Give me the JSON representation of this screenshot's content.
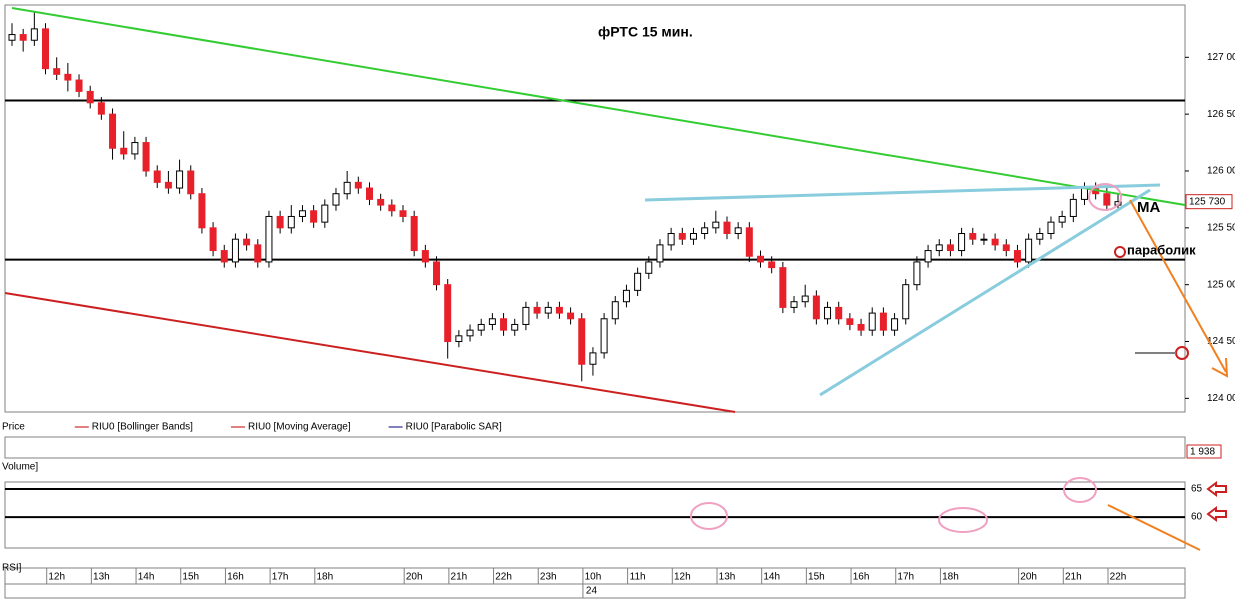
{
  "chart_data": {
    "type": "candlestick",
    "title": "фРТС   15 мин.",
    "categories": [
      null,
      null,
      null,
      null,
      "12h",
      null,
      null,
      null,
      "13h",
      null,
      null,
      null,
      "14h",
      null,
      null,
      null,
      "15h",
      null,
      null,
      null,
      "16h",
      null,
      null,
      null,
      "17h",
      null,
      null,
      null,
      "18h",
      null,
      null,
      null,
      null,
      null,
      null,
      null,
      "20h",
      null,
      null,
      null,
      "21h",
      null,
      null,
      null,
      "22h",
      null,
      null,
      null,
      "23h",
      null,
      null,
      null,
      "10h",
      null,
      null,
      null,
      "11h",
      null,
      null,
      null,
      "12h",
      null,
      null,
      null,
      "13h",
      null,
      null,
      null,
      "14h",
      null,
      null,
      null,
      "15h",
      null,
      null,
      null,
      "16h",
      null,
      null,
      null,
      "17h",
      null,
      null,
      null,
      "18h",
      null,
      null,
      null,
      null,
      null,
      null,
      "20h",
      null,
      null,
      null,
      "21h",
      null,
      null,
      null,
      "22h"
    ],
    "date_label": "24",
    "ohlc": [
      [
        127150,
        127300,
        127100,
        127200
      ],
      [
        127200,
        127250,
        127050,
        127150
      ],
      [
        127150,
        127400,
        127100,
        127250
      ],
      [
        127250,
        127300,
        126850,
        126900
      ],
      [
        126900,
        127000,
        126800,
        126850
      ],
      [
        126850,
        126950,
        126700,
        126800
      ],
      [
        126800,
        126850,
        126650,
        126700
      ],
      [
        126700,
        126750,
        126550,
        126600
      ],
      [
        126600,
        126650,
        126450,
        126500
      ],
      [
        126500,
        126550,
        126100,
        126200
      ],
      [
        126200,
        126350,
        126100,
        126150
      ],
      [
        126150,
        126300,
        126100,
        126250
      ],
      [
        126250,
        126300,
        125950,
        126000
      ],
      [
        126000,
        126050,
        125850,
        125900
      ],
      [
        125900,
        126000,
        125800,
        125850
      ],
      [
        125850,
        126100,
        125800,
        126000
      ],
      [
        126000,
        126050,
        125750,
        125800
      ],
      [
        125800,
        125850,
        125450,
        125500
      ],
      [
        125500,
        125550,
        125250,
        125300
      ],
      [
        125300,
        125350,
        125150,
        125200
      ],
      [
        125200,
        125450,
        125150,
        125400
      ],
      [
        125400,
        125450,
        125300,
        125350
      ],
      [
        125350,
        125400,
        125150,
        125200
      ],
      [
        125200,
        125650,
        125150,
        125600
      ],
      [
        125600,
        125650,
        125450,
        125500
      ],
      [
        125500,
        125700,
        125450,
        125600
      ],
      [
        125600,
        125700,
        125550,
        125650
      ],
      [
        125650,
        125700,
        125500,
        125550
      ],
      [
        125550,
        125750,
        125500,
        125700
      ],
      [
        125700,
        125850,
        125650,
        125800
      ],
      [
        125800,
        126000,
        125750,
        125900
      ],
      [
        125900,
        125950,
        125800,
        125850
      ],
      [
        125850,
        125900,
        125700,
        125750
      ],
      [
        125750,
        125800,
        125650,
        125700
      ],
      [
        125700,
        125750,
        125600,
        125650
      ],
      [
        125650,
        125700,
        125550,
        125600
      ],
      [
        125600,
        125650,
        125250,
        125300
      ],
      [
        125300,
        125350,
        125150,
        125200
      ],
      [
        125200,
        125250,
        124950,
        125000
      ],
      [
        125000,
        125050,
        124350,
        124500
      ],
      [
        124500,
        124600,
        124450,
        124550
      ],
      [
        124550,
        124650,
        124500,
        124600
      ],
      [
        124600,
        124700,
        124550,
        124650
      ],
      [
        124650,
        124750,
        124600,
        124700
      ],
      [
        124700,
        124750,
        124550,
        124600
      ],
      [
        124600,
        124700,
        124550,
        124650
      ],
      [
        124650,
        124850,
        124600,
        124800
      ],
      [
        124800,
        124850,
        124700,
        124750
      ],
      [
        124750,
        124850,
        124700,
        124800
      ],
      [
        124800,
        124850,
        124700,
        124750
      ],
      [
        124750,
        124800,
        124650,
        124700
      ],
      [
        124700,
        124750,
        124150,
        124300
      ],
      [
        124300,
        124450,
        124200,
        124400
      ],
      [
        124400,
        124750,
        124350,
        124700
      ],
      [
        124700,
        124900,
        124650,
        124850
      ],
      [
        124850,
        125000,
        124800,
        124950
      ],
      [
        124950,
        125150,
        124900,
        125100
      ],
      [
        125100,
        125250,
        125050,
        125200
      ],
      [
        125200,
        125400,
        125150,
        125350
      ],
      [
        125350,
        125500,
        125300,
        125450
      ],
      [
        125450,
        125500,
        125350,
        125400
      ],
      [
        125400,
        125500,
        125350,
        125450
      ],
      [
        125450,
        125550,
        125400,
        125500
      ],
      [
        125500,
        125650,
        125450,
        125550
      ],
      [
        125550,
        125600,
        125400,
        125450
      ],
      [
        125450,
        125550,
        125400,
        125500
      ],
      [
        125500,
        125550,
        125200,
        125250
      ],
      [
        125250,
        125300,
        125150,
        125200
      ],
      [
        125200,
        125250,
        125100,
        125150
      ],
      [
        125150,
        125200,
        124750,
        124800
      ],
      [
        124800,
        124900,
        124750,
        124850
      ],
      [
        124850,
        125000,
        124800,
        124900
      ],
      [
        124900,
        124950,
        124650,
        124700
      ],
      [
        124700,
        124850,
        124650,
        124800
      ],
      [
        124800,
        124850,
        124650,
        124700
      ],
      [
        124700,
        124750,
        124600,
        124650
      ],
      [
        124650,
        124700,
        124550,
        124600
      ],
      [
        124600,
        124800,
        124550,
        124750
      ],
      [
        124750,
        124800,
        124550,
        124600
      ],
      [
        124600,
        124750,
        124550,
        124700
      ],
      [
        124700,
        125050,
        124650,
        125000
      ],
      [
        125000,
        125250,
        124950,
        125200
      ],
      [
        125200,
        125350,
        125150,
        125300
      ],
      [
        125300,
        125400,
        125250,
        125350
      ],
      [
        125350,
        125400,
        125250,
        125300
      ],
      [
        125300,
        125500,
        125250,
        125450
      ],
      [
        125450,
        125500,
        125350,
        125400
      ],
      [
        125400,
        125450,
        125350,
        125400
      ],
      [
        125400,
        125450,
        125300,
        125350
      ],
      [
        125350,
        125400,
        125250,
        125300
      ],
      [
        125300,
        125350,
        125150,
        125200
      ],
      [
        125200,
        125450,
        125150,
        125400
      ],
      [
        125400,
        125500,
        125350,
        125450
      ],
      [
        125450,
        125600,
        125400,
        125550
      ],
      [
        125550,
        125650,
        125500,
        125600
      ],
      [
        125600,
        125800,
        125550,
        125750
      ],
      [
        125750,
        125900,
        125700,
        125850
      ],
      [
        125850,
        125900,
        125750,
        125800
      ],
      [
        125800,
        125850,
        125650,
        125700
      ],
      [
        125700,
        125800,
        125650,
        125730
      ]
    ],
    "up_color": "#ffffff",
    "down_color": "#e8202a",
    "ylim": [
      123880,
      127460
    ],
    "yticks": [
      {
        "value": 124000,
        "label": "124 000"
      },
      {
        "value": 124500,
        "label": "124 500"
      },
      {
        "value": 125000,
        "label": "125 000"
      },
      {
        "value": 125500,
        "label": "125 500"
      },
      {
        "value": 126000,
        "label": "126 000"
      },
      {
        "value": 126500,
        "label": "126 500"
      },
      {
        "value": 127000,
        "label": "127 000"
      }
    ],
    "last_price": {
      "value": 125730,
      "label": "125 730"
    },
    "hlines": [
      126620,
      125220
    ],
    "legend": [
      "Price",
      "RIU0 [Bollinger Bands]",
      "RIU0 [Moving Average]",
      "RIU0 [Parabolic SAR]"
    ],
    "legend_colors": [
      "#c00000",
      "#c00000",
      "#c00000",
      "#000080"
    ],
    "annotations": [
      "MA",
      "параболик"
    ],
    "volume": {
      "label": "Volume]",
      "last": {
        "value": 1938,
        "label": "1 938"
      }
    },
    "rsi": {
      "label": "RSI]",
      "ylim": [
        54.5,
        66.25
      ],
      "yticks": [
        65,
        60
      ]
    }
  }
}
